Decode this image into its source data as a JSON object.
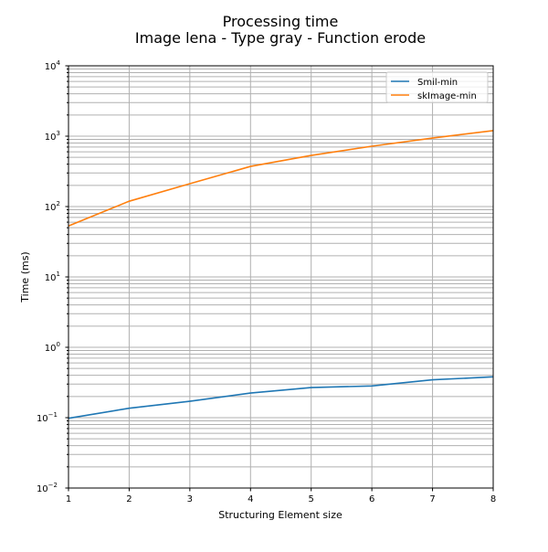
{
  "chart_data": {
    "type": "line",
    "title": "Processing time",
    "subtitle": "Image lena - Type gray - Function erode",
    "xlabel": "Structuring Element size",
    "ylabel": "Time (ms)",
    "x": [
      1,
      2,
      3,
      4,
      5,
      6,
      7,
      8
    ],
    "xlim": [
      1,
      8
    ],
    "xticks": [
      "1",
      "2",
      "3",
      "4",
      "5",
      "6",
      "7",
      "8"
    ],
    "ylim": [
      0.01,
      10000
    ],
    "yscale": "log",
    "yticks": [
      {
        "base": "10",
        "exp": "−2",
        "value": 0.01
      },
      {
        "base": "10",
        "exp": "−1",
        "value": 0.1
      },
      {
        "base": "10",
        "exp": "0",
        "value": 1
      },
      {
        "base": "10",
        "exp": "1",
        "value": 10
      },
      {
        "base": "10",
        "exp": "2",
        "value": 100
      },
      {
        "base": "10",
        "exp": "3",
        "value": 1000
      },
      {
        "base": "10",
        "exp": "4",
        "value": 10000
      }
    ],
    "grid": "major and minor",
    "legend_position": "top-right",
    "series": [
      {
        "name": "Smil-min",
        "color": "#1f77b4",
        "values": [
          0.098,
          0.136,
          0.171,
          0.224,
          0.268,
          0.282,
          0.345,
          0.38
        ]
      },
      {
        "name": "skImage-min",
        "color": "#ff7f0e",
        "values": [
          53,
          119,
          211,
          372,
          533,
          720,
          940,
          1200
        ]
      }
    ]
  }
}
